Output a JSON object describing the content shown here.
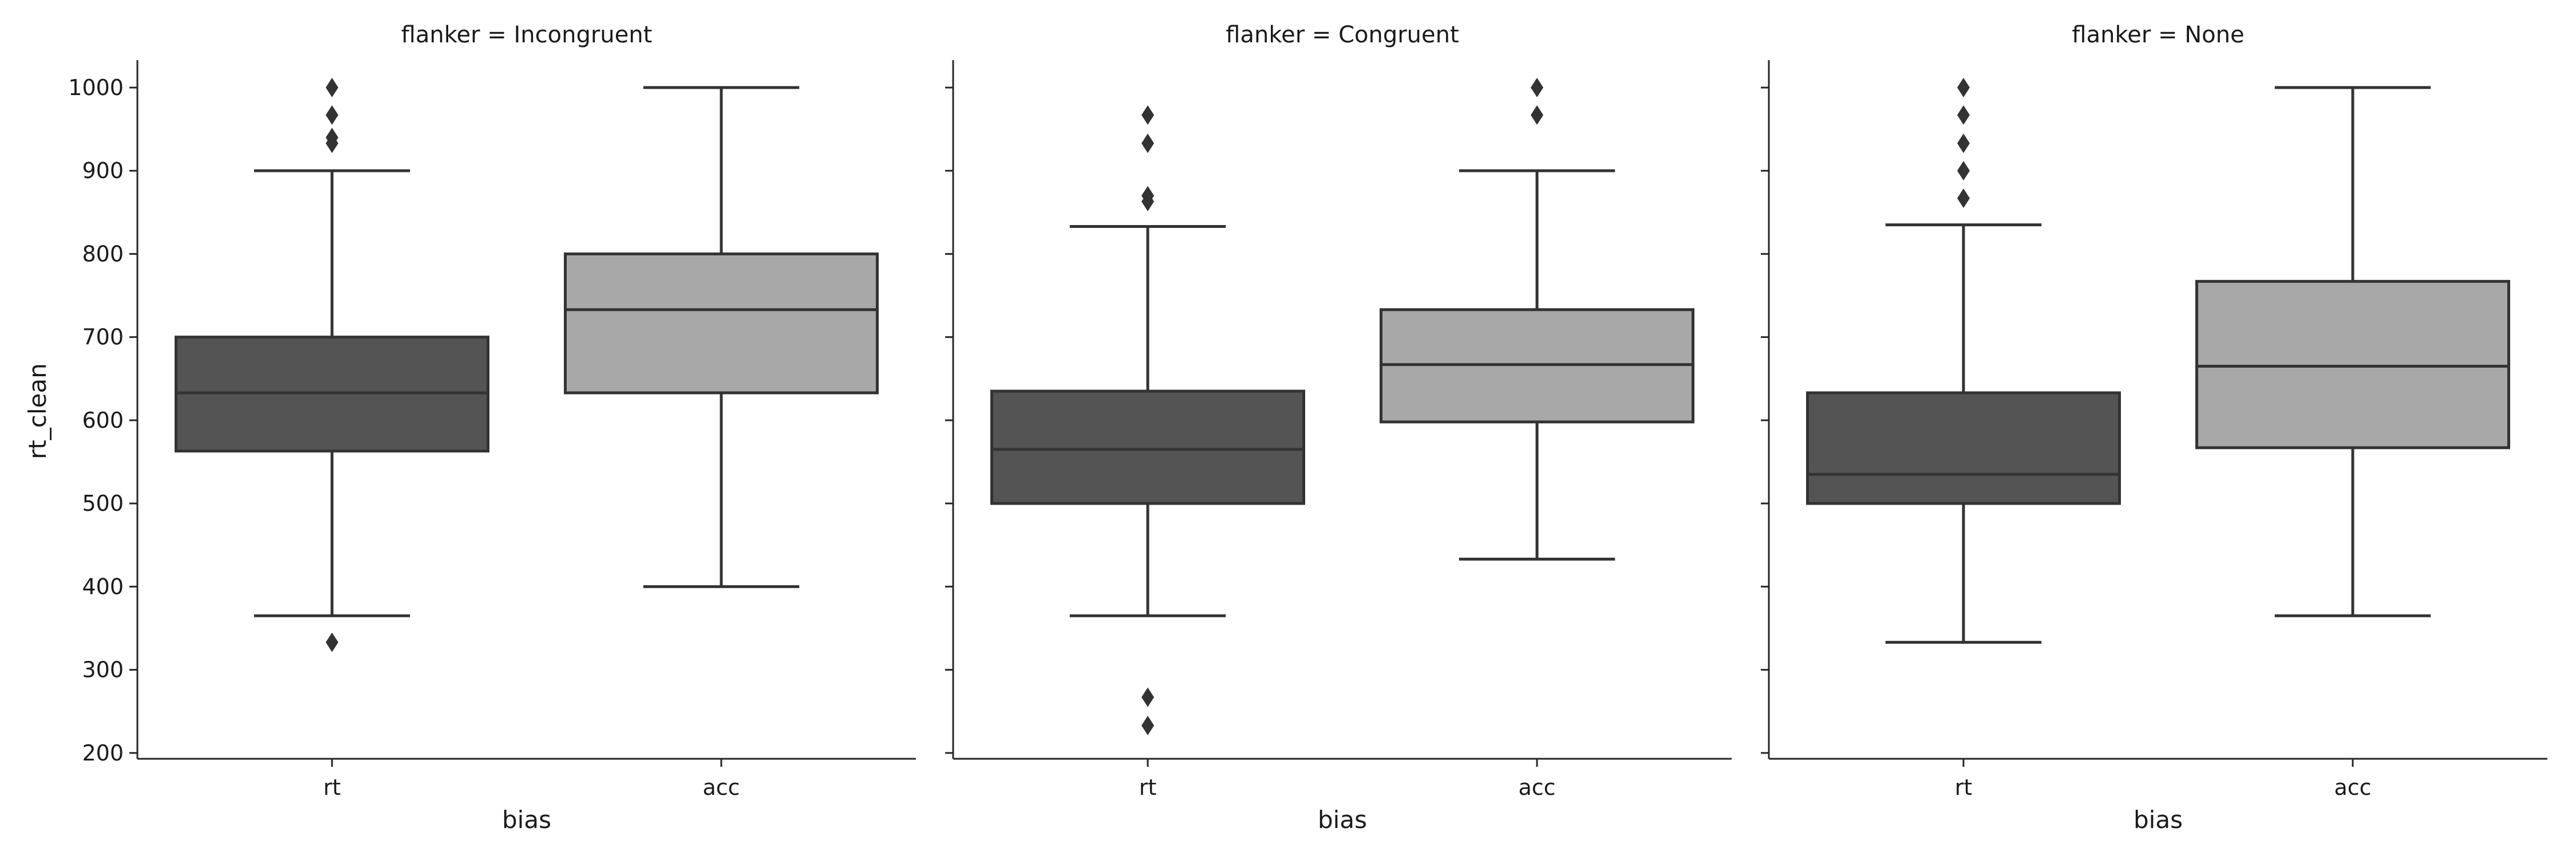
{
  "chart_data": [
    {
      "type": "box",
      "title": "flanker = Incongruent",
      "xlabel": "bias",
      "ylabel": "rt_clean",
      "ylim": [
        193,
        1033
      ],
      "yticks": [
        200,
        300,
        400,
        500,
        600,
        700,
        800,
        900,
        1000
      ],
      "categories": [
        "rt",
        "acc"
      ],
      "boxes": [
        {
          "category": "rt",
          "whisker_low": 365,
          "q1": 563,
          "median": 633,
          "q3": 700,
          "whisker_high": 900,
          "outliers": [
            333,
            933,
            940,
            967,
            1000
          ]
        },
        {
          "category": "acc",
          "whisker_low": 400,
          "q1": 633,
          "median": 733,
          "q3": 800,
          "whisker_high": 1000,
          "outliers": []
        }
      ]
    },
    {
      "type": "box",
      "title": "flanker = Congruent",
      "xlabel": "bias",
      "ylabel": "",
      "ylim": [
        193,
        1033
      ],
      "yticks": [
        200,
        300,
        400,
        500,
        600,
        700,
        800,
        900,
        1000
      ],
      "categories": [
        "rt",
        "acc"
      ],
      "boxes": [
        {
          "category": "rt",
          "whisker_low": 365,
          "q1": 500,
          "median": 565,
          "q3": 635,
          "whisker_high": 833,
          "outliers": [
            233,
            267,
            863,
            870,
            933,
            967
          ]
        },
        {
          "category": "acc",
          "whisker_low": 433,
          "q1": 598,
          "median": 667,
          "q3": 733,
          "whisker_high": 900,
          "outliers": [
            967,
            1000
          ]
        }
      ]
    },
    {
      "type": "box",
      "title": "flanker = None",
      "xlabel": "bias",
      "ylabel": "",
      "ylim": [
        193,
        1033
      ],
      "yticks": [
        200,
        300,
        400,
        500,
        600,
        700,
        800,
        900,
        1000
      ],
      "categories": [
        "rt",
        "acc"
      ],
      "boxes": [
        {
          "category": "rt",
          "whisker_low": 333,
          "q1": 500,
          "median": 535,
          "q3": 633,
          "whisker_high": 835,
          "outliers": [
            867,
            900,
            933,
            967,
            1000
          ]
        },
        {
          "category": "acc",
          "whisker_low": 365,
          "q1": 567,
          "median": 665,
          "q3": 767,
          "whisker_high": 1000,
          "outliers": []
        }
      ]
    }
  ],
  "colors": {
    "rt_box": "#545454",
    "acc_box": "#a8a8a8",
    "line": "#333333",
    "axis": "#262626"
  }
}
